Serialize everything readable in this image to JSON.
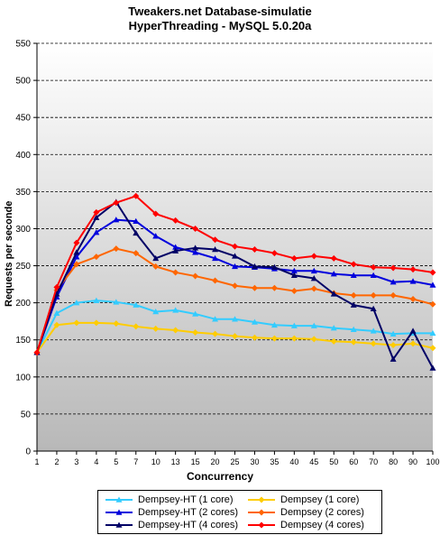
{
  "chart_data": {
    "type": "line",
    "title": "Tweakers.net Database-simulatie",
    "subtitle": "HyperThreading - MySQL 5.0.20a",
    "xlabel": "Concurrency",
    "ylabel": "Requests per seconde",
    "ylim": [
      0,
      550
    ],
    "yticks": [
      "0",
      "50",
      "100",
      "150",
      "200",
      "250",
      "300",
      "350",
      "400",
      "450",
      "500",
      "550"
    ],
    "categories": [
      "1",
      "2",
      "3",
      "4",
      "5",
      "7",
      "10",
      "13",
      "15",
      "20",
      "25",
      "30",
      "35",
      "40",
      "45",
      "50",
      "60",
      "70",
      "80",
      "90",
      "100"
    ],
    "grid": "horizontal dashed",
    "legend_position": "bottom",
    "series": [
      {
        "name": "Dempsey-HT (1 core)",
        "color": "#33ccff",
        "marker": "triangle",
        "values": [
          133,
          186,
          200,
          203,
          201,
          197,
          188,
          190,
          185,
          178,
          178,
          174,
          170,
          169,
          169,
          166,
          164,
          162,
          158,
          159,
          159
        ]
      },
      {
        "name": "Dempsey (1 core)",
        "color": "#ffcc00",
        "marker": "diamond",
        "values": [
          133,
          170,
          173,
          173,
          172,
          168,
          165,
          163,
          160,
          158,
          155,
          153,
          152,
          152,
          151,
          148,
          147,
          145,
          143,
          145,
          139
        ]
      },
      {
        "name": "Dempsey-HT (2 cores)",
        "color": "#0000dd",
        "marker": "triangle",
        "values": [
          133,
          208,
          262,
          295,
          312,
          310,
          290,
          275,
          268,
          260,
          249,
          248,
          246,
          243,
          243,
          239,
          237,
          237,
          228,
          229,
          224
        ]
      },
      {
        "name": "Dempsey (2 cores)",
        "color": "#ff6600",
        "marker": "diamond",
        "values": [
          133,
          217,
          252,
          262,
          273,
          267,
          249,
          241,
          236,
          230,
          223,
          220,
          220,
          216,
          219,
          213,
          210,
          210,
          210,
          205,
          198
        ]
      },
      {
        "name": "Dempsey-HT (4 cores)",
        "color": "#000066",
        "marker": "triangle",
        "values": [
          133,
          212,
          268,
          315,
          336,
          294,
          260,
          270,
          274,
          272,
          263,
          249,
          248,
          237,
          233,
          212,
          197,
          192,
          124,
          162,
          112
        ]
      },
      {
        "name": "Dempsey (4 cores)",
        "color": "#ff0000",
        "marker": "diamond",
        "values": [
          133,
          221,
          281,
          322,
          335,
          344,
          320,
          311,
          300,
          285,
          276,
          272,
          267,
          260,
          263,
          260,
          252,
          248,
          247,
          245,
          241
        ]
      }
    ]
  }
}
